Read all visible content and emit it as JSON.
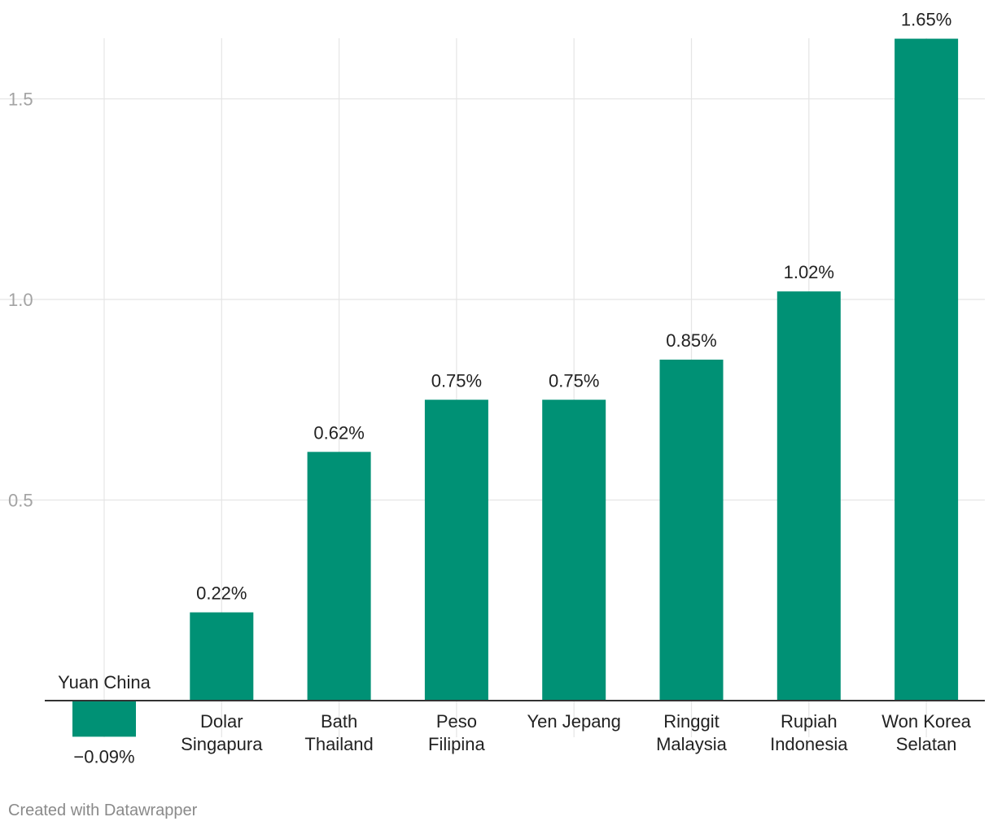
{
  "chart_data": {
    "type": "bar",
    "categories": [
      [
        "Yuan China"
      ],
      [
        "Dolar",
        "Singapura"
      ],
      [
        "Bath",
        "Thailand"
      ],
      [
        "Peso",
        "Filipina"
      ],
      [
        "Yen Jepang"
      ],
      [
        "Ringgit",
        "Malaysia"
      ],
      [
        "Rupiah",
        "Indonesia"
      ],
      [
        "Won Korea",
        "Selatan"
      ]
    ],
    "values": [
      -0.09,
      0.22,
      0.62,
      0.75,
      0.75,
      0.85,
      1.02,
      1.65
    ],
    "value_labels": [
      "−0.09%",
      "0.22%",
      "0.62%",
      "0.75%",
      "0.75%",
      "0.85%",
      "1.02%",
      "1.65%"
    ],
    "yticks": [
      0.5,
      1.0,
      1.5
    ],
    "ytick_labels": [
      "0.5",
      "1.0",
      "1.5"
    ],
    "ylim": [
      -0.09,
      1.65
    ],
    "bar_color": "#009175",
    "grid": true,
    "title": "",
    "xlabel": "",
    "ylabel": ""
  },
  "footer": {
    "credit": "Created with Datawrapper"
  }
}
